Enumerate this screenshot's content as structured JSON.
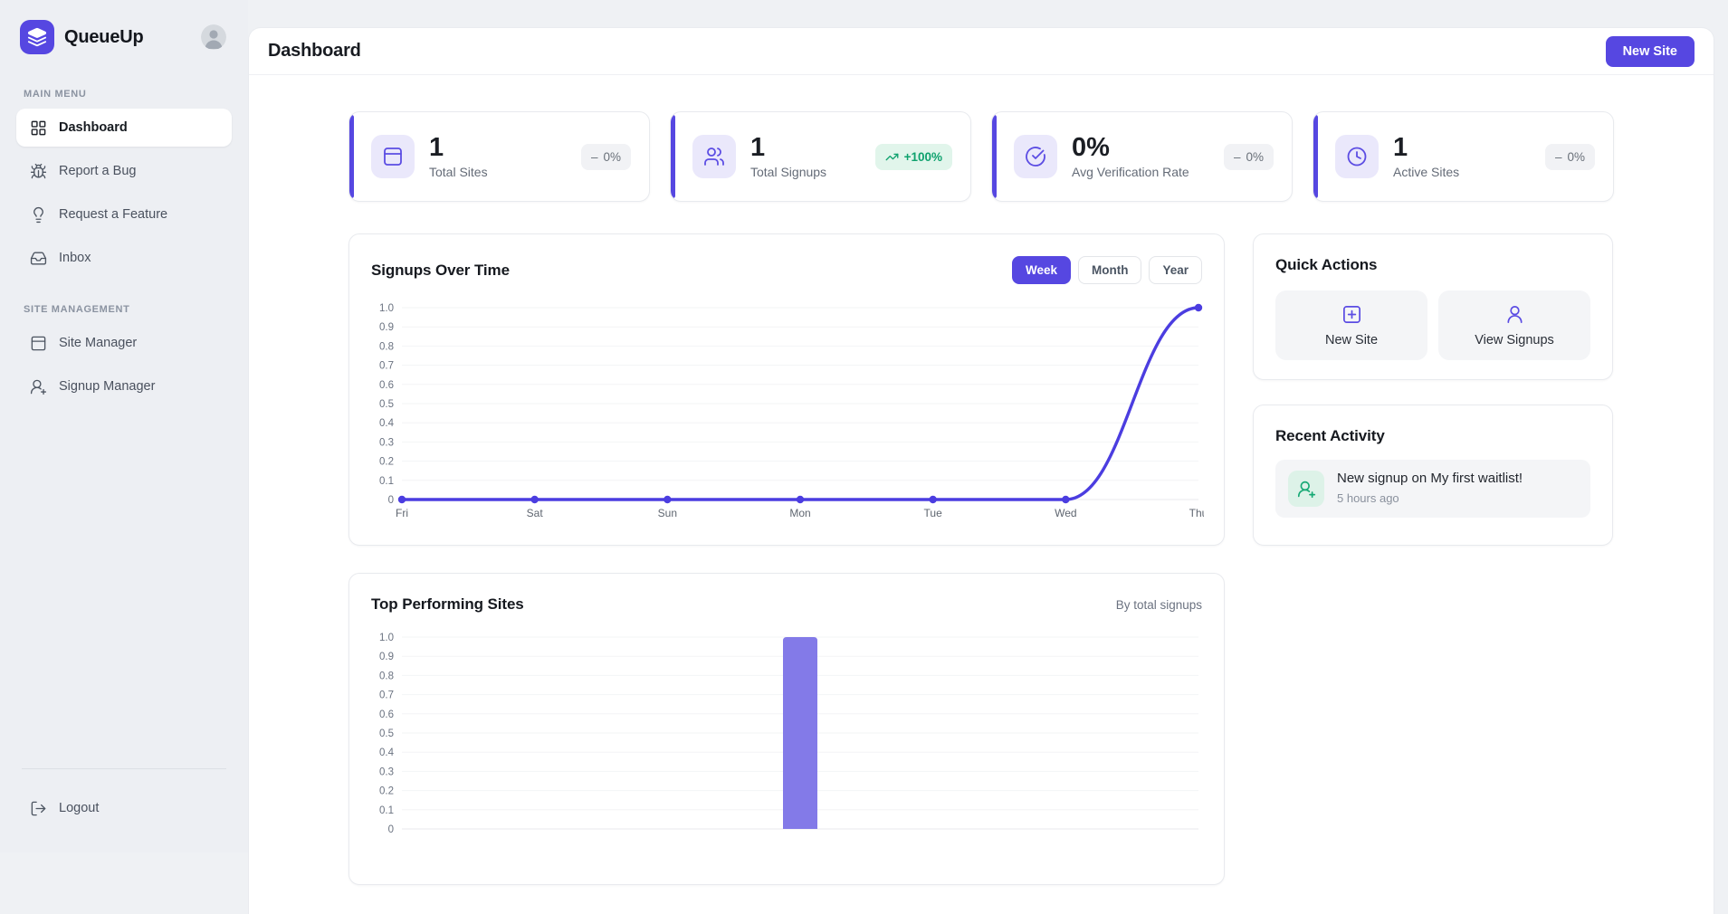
{
  "app": {
    "name": "QueueUp",
    "accent_color": "#5647e1"
  },
  "sidebar": {
    "sections": [
      {
        "label": "MAIN MENU",
        "items": [
          {
            "label": "Dashboard",
            "icon": "dashboard-grid-icon",
            "active": true
          },
          {
            "label": "Report a Bug",
            "icon": "bug-icon"
          },
          {
            "label": "Request a Feature",
            "icon": "lightbulb-icon"
          },
          {
            "label": "Inbox",
            "icon": "inbox-icon"
          }
        ]
      },
      {
        "label": "SITE MANAGEMENT",
        "items": [
          {
            "label": "Site Manager",
            "icon": "browser-icon"
          },
          {
            "label": "Signup Manager",
            "icon": "user-plus-icon"
          }
        ]
      }
    ],
    "logout_label": "Logout"
  },
  "header": {
    "title": "Dashboard",
    "new_site_button": "New Site"
  },
  "stats": [
    {
      "value": "1",
      "label": "Total Sites",
      "icon": "browser-icon",
      "badge_type": "neutral",
      "badge_prefix": "–",
      "badge_text": "0%"
    },
    {
      "value": "1",
      "label": "Total Signups",
      "icon": "users-icon",
      "badge_type": "positive",
      "badge_text": "+100%"
    },
    {
      "value": "0%",
      "label": "Avg Verification Rate",
      "icon": "check-circle-icon",
      "badge_type": "neutral",
      "badge_prefix": "–",
      "badge_text": "0%"
    },
    {
      "value": "1",
      "label": "Active Sites",
      "icon": "clock-icon",
      "badge_type": "neutral",
      "badge_prefix": "–",
      "badge_text": "0%"
    }
  ],
  "signups_chart": {
    "title": "Signups Over Time",
    "ranges": [
      "Week",
      "Month",
      "Year"
    ],
    "active_range": "Week"
  },
  "top_sites": {
    "title": "Top Performing Sites",
    "subtitle": "By total signups"
  },
  "quick_actions": {
    "title": "Quick Actions",
    "actions": [
      {
        "label": "New Site",
        "icon": "square-plus-icon"
      },
      {
        "label": "View Signups",
        "icon": "user-icon"
      }
    ]
  },
  "recent_activity": {
    "title": "Recent Activity",
    "items": [
      {
        "text": "New signup on My first waitlist!",
        "time": "5 hours ago",
        "icon": "user-plus-icon"
      }
    ]
  },
  "chart_data": [
    {
      "id": "signups-over-time",
      "type": "line",
      "x": [
        "Fri",
        "Sat",
        "Sun",
        "Mon",
        "Tue",
        "Wed",
        "Thu"
      ],
      "values": [
        0,
        0,
        0,
        0,
        0,
        0,
        1
      ],
      "title": "Signups Over Time",
      "xlabel": "",
      "ylabel": "",
      "ylim": [
        0,
        1.0
      ],
      "ytick_step": 0.1,
      "grid": true,
      "legend": false,
      "line_color": "#4b3de0",
      "point_color": "#4b3de0"
    },
    {
      "id": "top-performing-sites",
      "type": "bar",
      "categories": [
        ""
      ],
      "values": [
        1
      ],
      "title": "Top Performing Sites",
      "xlabel": "",
      "ylabel": "",
      "ylim": [
        0,
        1.0
      ],
      "ytick_step": 0.1,
      "grid": true,
      "legend": false,
      "bar_color": "#837ae8"
    }
  ]
}
